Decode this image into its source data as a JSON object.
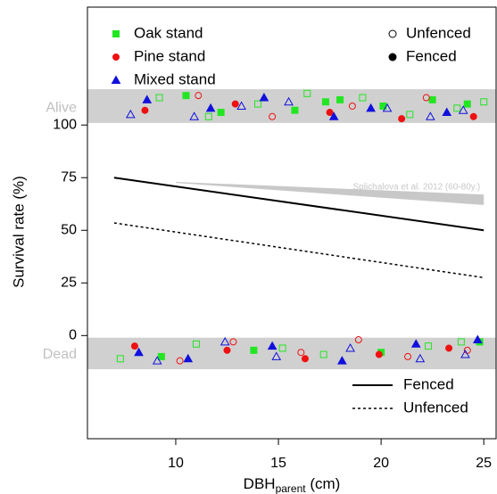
{
  "chart_data": {
    "type": "scatter",
    "xlabel": {
      "text": "DBH",
      "sub": "parent",
      "suffix": " (cm)"
    },
    "ylabel": "Survival rate (%)",
    "xlim": [
      5.7,
      25.6
    ],
    "ylim": [
      -49,
      156
    ],
    "xticks": [
      10,
      15,
      20,
      25
    ],
    "yticks": [
      0,
      25,
      50,
      75,
      100
    ],
    "category_labels": [
      {
        "value": 108,
        "label": "Alive"
      },
      {
        "value": -9,
        "label": "Dead"
      }
    ],
    "bands": [
      [
        101,
        117
      ],
      [
        -1,
        -16
      ]
    ],
    "band_color": "#d0d0d0",
    "stands": [
      {
        "name": "Oak stand",
        "color": "#22e622",
        "marker": "square"
      },
      {
        "name": "Pine stand",
        "color": "#ee1111",
        "marker": "circle"
      },
      {
        "name": "Mixed stand",
        "color": "#1111dd",
        "marker": "triangle"
      }
    ],
    "fencing": [
      {
        "name": "Unfenced",
        "filled": false
      },
      {
        "name": "Fenced",
        "filled": true
      }
    ],
    "points": [
      {
        "stand": 0,
        "fencing": 1,
        "x": [
          10.5,
          12.2,
          15.8,
          17.3,
          18.0,
          20.1,
          22.5,
          24.2,
          9.3,
          13.8,
          20.0,
          24.8
        ],
        "y": [
          114,
          106,
          107,
          111,
          112,
          109,
          112,
          110,
          -10,
          -7,
          -8,
          -3
        ]
      },
      {
        "stand": 0,
        "fencing": 0,
        "x": [
          9.2,
          11.6,
          14.0,
          16.4,
          19.1,
          21.4,
          23.7,
          25.0,
          7.3,
          11.0,
          15.2,
          17.2,
          22.3,
          23.9
        ],
        "y": [
          113,
          104,
          110,
          115,
          113,
          105,
          108,
          111,
          -11,
          -4,
          -6,
          -9,
          -5,
          -3
        ]
      },
      {
        "stand": 1,
        "fencing": 1,
        "x": [
          8.5,
          12.9,
          17.5,
          21.0,
          24.5,
          8.0,
          12.5,
          16.3,
          19.9,
          23.3
        ],
        "y": [
          107,
          110,
          106,
          103,
          104,
          -5,
          -7,
          -11,
          -9,
          -6
        ]
      },
      {
        "stand": 1,
        "fencing": 0,
        "x": [
          11.1,
          14.7,
          18.6,
          22.2,
          10.2,
          12.8,
          16.1,
          18.9,
          21.3,
          24.2
        ],
        "y": [
          114,
          104,
          109,
          113,
          -12,
          -3,
          -8,
          -2,
          -10,
          -7
        ]
      },
      {
        "stand": 2,
        "fencing": 1,
        "x": [
          8.6,
          11.7,
          14.3,
          17.7,
          19.5,
          23.2,
          8.2,
          10.6,
          14.7,
          18.1,
          21.7,
          24.7
        ],
        "y": [
          112,
          108,
          113,
          104,
          108,
          106,
          -8,
          -11,
          -5,
          -12,
          -4,
          -2
        ]
      },
      {
        "stand": 2,
        "fencing": 0,
        "x": [
          7.8,
          10.9,
          13.2,
          15.5,
          20.3,
          22.4,
          24.0,
          9.1,
          12.4,
          14.9,
          18.5,
          21.9,
          24.1
        ],
        "y": [
          105,
          104,
          109,
          111,
          108,
          104,
          107,
          -12,
          -3,
          -10,
          -6,
          -11,
          -9
        ]
      }
    ],
    "lines": [
      {
        "name": "Fenced",
        "style": "solid",
        "x": [
          7,
          25
        ],
        "y": [
          75,
          50
        ]
      },
      {
        "name": "Unfenced",
        "style": "dotted",
        "x": [
          7,
          25
        ],
        "y": [
          53.5,
          27.5
        ]
      }
    ],
    "reference": {
      "label": "Splichalova et al. 2012 (60-80y.)",
      "color": "#c8c8c8",
      "x": [
        10,
        25
      ],
      "lower": [
        72.5,
        62
      ],
      "upper": [
        73,
        67
      ]
    }
  }
}
